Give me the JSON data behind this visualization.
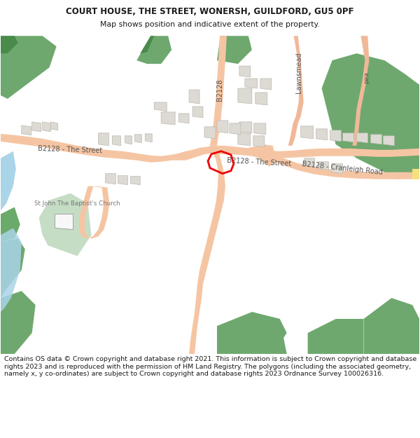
{
  "title": "COURT HOUSE, THE STREET, WONERSH, GUILDFORD, GU5 0PF",
  "subtitle": "Map shows position and indicative extent of the property.",
  "footer": "Contains OS data © Crown copyright and database right 2021. This information is subject to Crown copyright and database rights 2023 and is reproduced with the permission of HM Land Registry. The polygons (including the associated geometry, namely x, y co-ordinates) are subject to Crown copyright and database rights 2023 Ordnance Survey 100026316.",
  "title_fontsize": 8.5,
  "subtitle_fontsize": 7.8,
  "footer_fontsize": 6.8,
  "bg_color": "#ffffff",
  "map_bg": "#f8f7f4",
  "road_color": "#f5c5a3",
  "green_dark": "#6ea86e",
  "green_mid": "#82b882",
  "green_light": "#c5ddc5",
  "blue_color": "#aad4e8",
  "building_fill": "#dddad4",
  "building_edge": "#bcb8b2",
  "highlight_color": "#ee0000",
  "text_dark": "#1a1a1a",
  "text_road": "#555555",
  "yellow_accent": "#f5e080"
}
